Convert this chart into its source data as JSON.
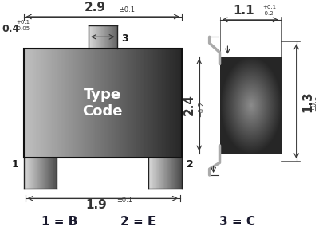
{
  "bg_color": "#ffffff",
  "text_color": "#1a1a1a",
  "dim_color": "#333333",
  "label_color": "#1a1a2e",
  "footer_labels": [
    "1 = B",
    "2 = E",
    "3 = C"
  ],
  "front_dims": {
    "width_label": "2.9",
    "width_tol": "±0.1",
    "height_label": "0.4",
    "height_tol": "+0.1\n-0.05",
    "bottom_label": "1.9",
    "bottom_tol": "±0.1",
    "pin3_label": "3"
  },
  "side_dims": {
    "top_label": "1.1",
    "top_tol": "+0.1\n-0.2",
    "height_label": "2.4",
    "height_tol": "±0.2",
    "right_label": "1.3",
    "right_tol": "±0.1"
  },
  "type_code_text": "Type\nCode"
}
